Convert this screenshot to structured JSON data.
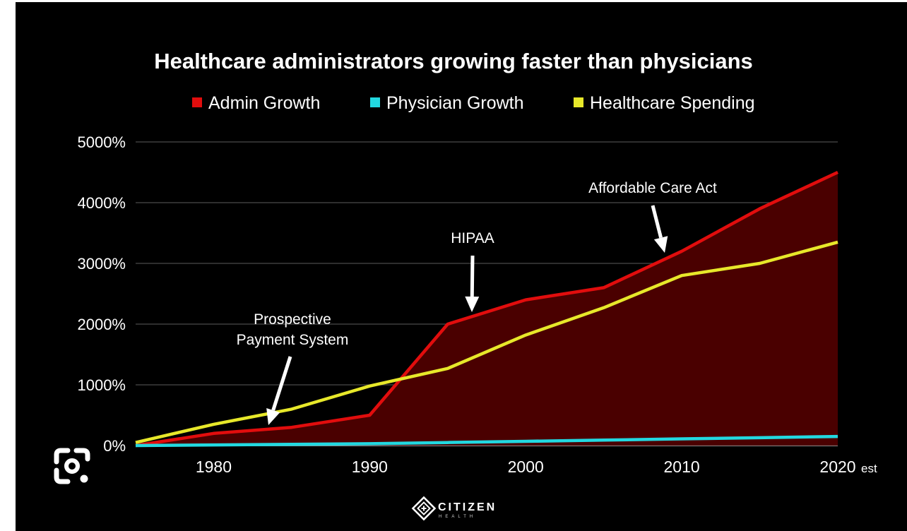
{
  "colors": {
    "background": "#000000",
    "page_margin": "#ffffff",
    "admin": "#e10d0d",
    "admin_fill": "#4a0000",
    "physician": "#22d8e0",
    "spending": "#e7e82a",
    "grid": "#4a4a4a",
    "text": "#ffffff"
  },
  "logo": {
    "name": "CITIZEN",
    "sub": "HEALTH",
    "icon": "citizen-health-logo-icon"
  },
  "lens_button": {
    "icon": "google-lens-icon"
  },
  "chart_data": {
    "type": "line",
    "title": "Healthcare administrators growing faster than physicians",
    "xlabel": "",
    "ylabel": "",
    "x": [
      1975,
      1980,
      1985,
      1990,
      1995,
      2000,
      2005,
      2010,
      2015,
      2020
    ],
    "x_ticks": [
      1980,
      1990,
      2000,
      2010,
      2020
    ],
    "x_tick_labels": [
      "1980",
      "1990",
      "2000",
      "2010",
      "2020"
    ],
    "x_last_tick_suffix": "est",
    "xlim": [
      1975,
      2020
    ],
    "ylim": [
      0,
      5000
    ],
    "y_ticks": [
      0,
      1000,
      2000,
      3000,
      4000,
      5000
    ],
    "y_tick_labels": [
      "0%",
      "1000%",
      "2000%",
      "3000%",
      "4000%",
      "5000%"
    ],
    "grid": true,
    "legend_position": "top-center",
    "series": [
      {
        "name": "Admin Growth",
        "color": "#e10d0d",
        "filled": true,
        "values": [
          0,
          200,
          300,
          500,
          2000,
          2400,
          2600,
          3200,
          3900,
          4500
        ]
      },
      {
        "name": "Physician Growth",
        "color": "#22d8e0",
        "filled": false,
        "values": [
          0,
          10,
          20,
          30,
          50,
          70,
          90,
          110,
          130,
          150
        ]
      },
      {
        "name": "Healthcare Spending",
        "color": "#e7e82a",
        "filled": false,
        "values": [
          50,
          350,
          600,
          980,
          1270,
          1820,
          2270,
          2800,
          3000,
          3350
        ]
      }
    ],
    "annotations": [
      {
        "lines": [
          "Prospective",
          "Payment System"
        ],
        "x": 1983.5,
        "y": 270
      },
      {
        "lines": [
          "HIPAA"
        ],
        "x": 1996.5,
        "y": 2200
      },
      {
        "lines": [
          "Affordable Care Act"
        ],
        "x": 2009,
        "y": 3120
      }
    ]
  }
}
